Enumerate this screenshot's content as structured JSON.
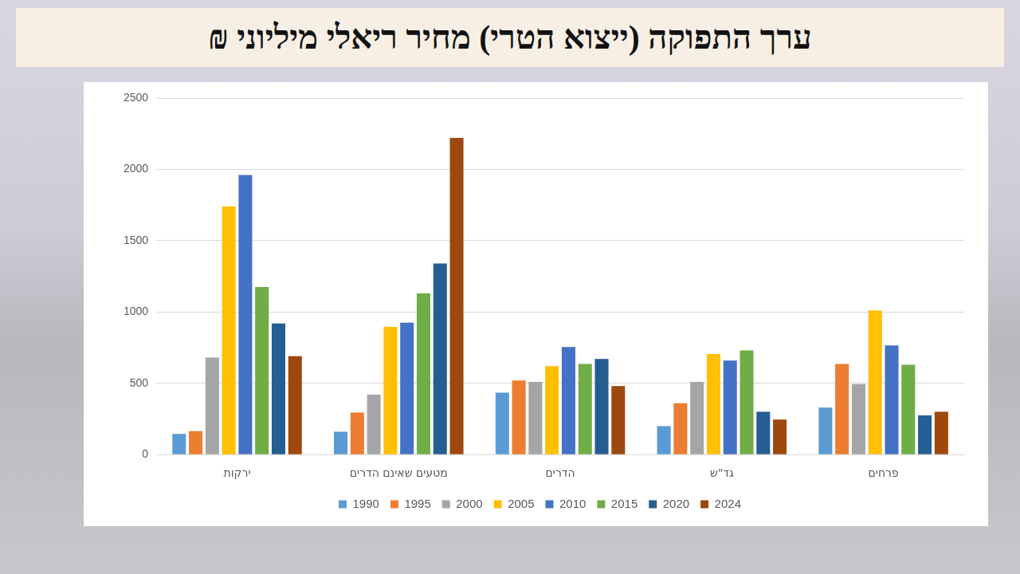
{
  "chart_data": {
    "type": "bar",
    "title": "ערך התפוקה (ייצוא הטרי) מחיר ריאלי מיליוני ₪",
    "categories": [
      "ירקות",
      "מטעים שאינם הדרים",
      "הדרים",
      "גד\"ש",
      "פרחים"
    ],
    "series": [
      {
        "name": "1990",
        "color": "#5b9bd5",
        "values": [
          145,
          160,
          435,
          200,
          330
        ]
      },
      {
        "name": "1995",
        "color": "#ed7d31",
        "values": [
          165,
          295,
          520,
          360,
          635
        ]
      },
      {
        "name": "2000",
        "color": "#a5a5a5",
        "values": [
          680,
          420,
          510,
          510,
          495
        ]
      },
      {
        "name": "2005",
        "color": "#ffc000",
        "values": [
          1740,
          895,
          620,
          705,
          1010
        ]
      },
      {
        "name": "2010",
        "color": "#4472c4",
        "values": [
          1960,
          925,
          755,
          660,
          765
        ]
      },
      {
        "name": "2015",
        "color": "#70ad47",
        "values": [
          1175,
          1130,
          635,
          730,
          630
        ]
      },
      {
        "name": "2020",
        "color": "#255e91",
        "values": [
          920,
          1340,
          670,
          300,
          275
        ]
      },
      {
        "name": "2024",
        "color": "#9e480e",
        "values": [
          690,
          2220,
          480,
          245,
          300
        ]
      }
    ],
    "ylim": [
      0,
      2500
    ],
    "yticks": [
      0,
      500,
      1000,
      1500,
      2000,
      2500
    ],
    "grid": true,
    "legend": "bottom"
  }
}
